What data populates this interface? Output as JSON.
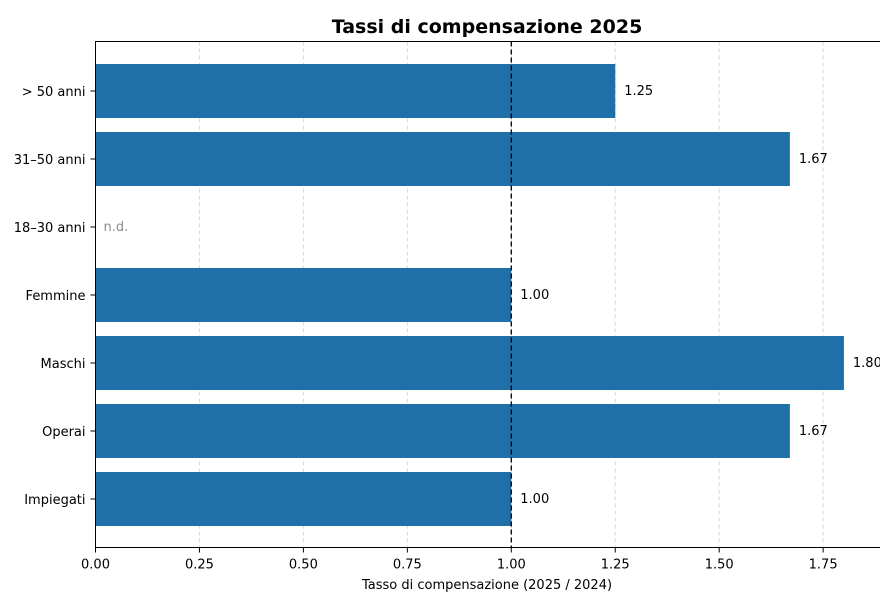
{
  "chart_data": {
    "type": "bar",
    "orientation": "horizontal",
    "title": "Tassi di compensazione 2025",
    "xlabel": "Tasso di compensazione (2025 / 2024)",
    "ylabel": "",
    "xlim": [
      0,
      1.9
    ],
    "xticks": [
      0.0,
      0.25,
      0.5,
      0.75,
      1.0,
      1.25,
      1.5,
      1.75
    ],
    "xtick_labels": [
      "0.00",
      "0.25",
      "0.50",
      "0.75",
      "1.00",
      "1.25",
      "1.50",
      "1.75"
    ],
    "grid": "vertical dashed",
    "reference_line": {
      "x": 1.0,
      "style": "dashed",
      "color": "#000000"
    },
    "bar_color": "#1f6fa8",
    "categories": [
      {
        "label": "> 50 anni",
        "value": 1.25,
        "value_label": "1.25"
      },
      {
        "label": "31–50 anni",
        "value": 1.67,
        "value_label": "1.67"
      },
      {
        "label": "18–30 anni",
        "value": null,
        "value_label": "n.d."
      },
      {
        "label": "Femmine",
        "value": 1.0,
        "value_label": "1.00"
      },
      {
        "label": "Maschi",
        "value": 1.8,
        "value_label": "1.80"
      },
      {
        "label": "Operai",
        "value": 1.67,
        "value_label": "1.67"
      },
      {
        "label": "Impiegati",
        "value": 1.0,
        "value_label": "1.00"
      }
    ]
  }
}
